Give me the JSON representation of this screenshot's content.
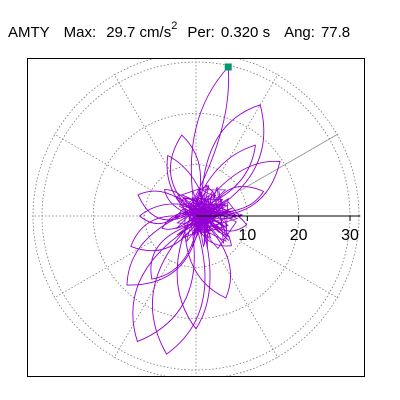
{
  "header": {
    "station": "AMTY",
    "max_label": "Max:",
    "max_value": "29.7 cm/s",
    "max_exp": "2",
    "per_label": "Per:",
    "per_value": "0.320 s",
    "ang_label": "Ang:",
    "ang_value": "77.8"
  },
  "chart_data": {
    "type": "polar-scatter",
    "title": "AMTY  Max: 29.7 cm/s2  Per: 0.320 s  Ang: 77.8",
    "radial_axis": {
      "ticks": [
        10,
        20,
        30
      ],
      "tick_labels": [
        "10",
        "20",
        "30"
      ],
      "range": [
        0,
        30
      ],
      "spoke_interval_deg": 30,
      "grid": "dotted"
    },
    "peak": {
      "r": 29.7,
      "angle_deg": 77.8,
      "marker_color": "#00966e"
    },
    "trace_color": "#9400d3",
    "trace_description_lobes": [
      {
        "angle_deg": 77.8,
        "r": 29.7
      },
      {
        "angle_deg": 258,
        "r": 27.5
      },
      {
        "angle_deg": 245,
        "r": 27.0
      },
      {
        "angle_deg": 60,
        "r": 25.0
      },
      {
        "angle_deg": 33,
        "r": 19.5
      },
      {
        "angle_deg": 205,
        "r": 14.0
      },
      {
        "angle_deg": 160,
        "r": 12.0
      },
      {
        "angle_deg": 225,
        "r": 19.0
      },
      {
        "angle_deg": 290,
        "r": 17.0
      },
      {
        "angle_deg": 115,
        "r": 13.0
      },
      {
        "angle_deg": 20,
        "r": 14.0
      },
      {
        "angle_deg": 180,
        "r": 11.0
      },
      {
        "angle_deg": 320,
        "r": 9.0
      },
      {
        "angle_deg": 100,
        "r": 16.0
      },
      {
        "angle_deg": 270,
        "r": 22.0
      },
      {
        "angle_deg": 50,
        "r": 18.0
      },
      {
        "angle_deg": 235,
        "r": 15.0
      },
      {
        "angle_deg": 140,
        "r": 8.0
      },
      {
        "angle_deg": 350,
        "r": 10.0
      },
      {
        "angle_deg": 200,
        "r": 7.0
      }
    ]
  }
}
